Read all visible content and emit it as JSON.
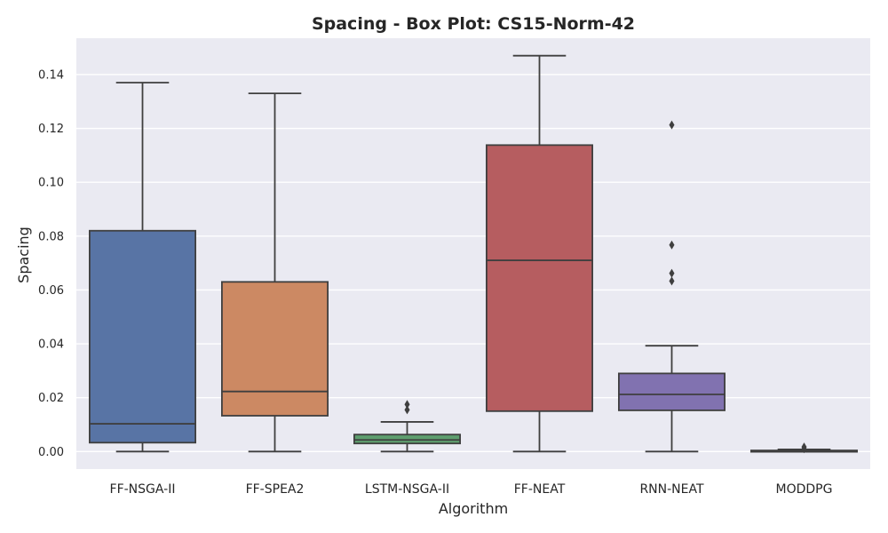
{
  "chart_data": {
    "type": "box",
    "title": "Spacing - Box Plot: CS15-Norm-42",
    "xlabel": "Algorithm",
    "ylabel": "Spacing",
    "ylim": [
      -0.0065,
      0.1535
    ],
    "yticks": [
      0.0,
      0.02,
      0.04,
      0.06,
      0.08,
      0.1,
      0.12,
      0.14
    ],
    "ytick_labels": [
      "0.00",
      "0.02",
      "0.04",
      "0.06",
      "0.08",
      "0.10",
      "0.12",
      "0.14"
    ],
    "grid": true,
    "categories": [
      "FF-NSGA-II",
      "FF-SPEA2",
      "LSTM-NSGA-II",
      "FF-NEAT",
      "RNN-NEAT",
      "MODDPG"
    ],
    "boxes": [
      {
        "category": "FF-NSGA-II",
        "color": "#5874a5",
        "whisker_low": 0.0,
        "q1": 0.0033,
        "median": 0.0103,
        "q3": 0.082,
        "whisker_high": 0.137,
        "outliers": []
      },
      {
        "category": "FF-SPEA2",
        "color": "#cc8963",
        "whisker_low": 0.0,
        "q1": 0.0133,
        "median": 0.0223,
        "q3": 0.063,
        "whisker_high": 0.133,
        "outliers": []
      },
      {
        "category": "LSTM-NSGA-II",
        "color": "#5e9e6e",
        "whisker_low": 0.0,
        "q1": 0.003,
        "median": 0.0043,
        "q3": 0.0063,
        "whisker_high": 0.011,
        "outliers": [
          0.0155,
          0.0175
        ]
      },
      {
        "category": "FF-NEAT",
        "color": "#b65d60",
        "whisker_low": 0.0,
        "q1": 0.015,
        "median": 0.071,
        "q3": 0.1138,
        "whisker_high": 0.147,
        "outliers": []
      },
      {
        "category": "RNN-NEAT",
        "color": "#8172b0",
        "whisker_low": 0.0,
        "q1": 0.0153,
        "median": 0.0212,
        "q3": 0.029,
        "whisker_high": 0.0393,
        "outliers": [
          0.0633,
          0.0662,
          0.0767,
          0.1213
        ]
      },
      {
        "category": "MODDPG",
        "color": "#8c7b6b",
        "whisker_low": 0.0,
        "q1": 0.0001,
        "median": 0.0002,
        "q3": 0.0004,
        "whisker_high": 0.0008,
        "outliers": [
          0.001,
          0.0017
        ]
      }
    ],
    "style": {
      "plot_bg": "#eaeaf2",
      "grid_color": "#ffffff",
      "line_color": "#3f3f3f",
      "text_color": "#262626"
    }
  }
}
